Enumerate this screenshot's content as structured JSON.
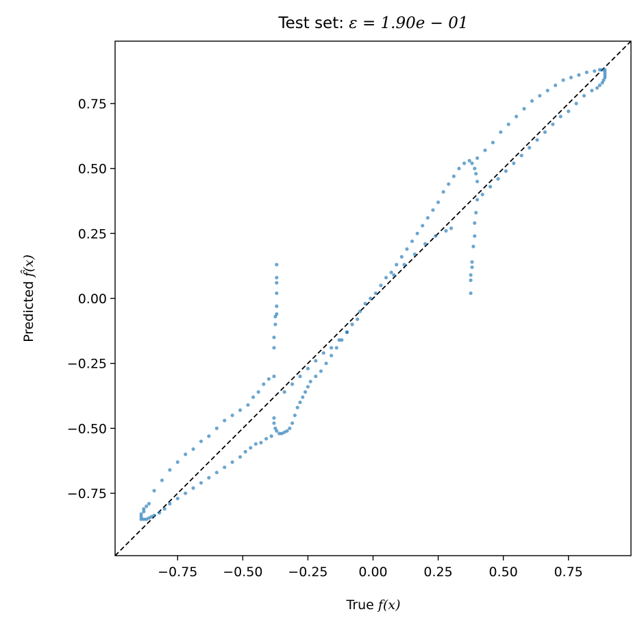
{
  "chart_data": {
    "type": "scatter",
    "title_prefix": "Test set: ",
    "title_math": "ε = 1.90e − 01",
    "xlabel_prefix": "True ",
    "xlabel_math": "f(x)",
    "ylabel_prefix": "Predicted ",
    "ylabel_math": "f̂(x)",
    "xlim": [
      -0.99,
      0.99
    ],
    "ylim": [
      -0.99,
      0.99
    ],
    "xticks": [
      -0.75,
      -0.5,
      -0.25,
      0.0,
      0.25,
      0.5,
      0.75
    ],
    "xtick_labels": [
      "−0.75",
      "−0.50",
      "−0.25",
      "0.00",
      "0.25",
      "0.50",
      "0.75"
    ],
    "yticks": [
      -0.75,
      -0.5,
      -0.25,
      0.0,
      0.25,
      0.5,
      0.75
    ],
    "ytick_labels": [
      "−0.75",
      "−0.50",
      "−0.25",
      "0.00",
      "0.25",
      "0.50",
      "0.75"
    ],
    "grid": false,
    "point_color": "#1f77b4",
    "reference_line": {
      "style": "dashed",
      "color": "#000000",
      "from": [
        -0.99,
        -0.99
      ],
      "to": [
        0.99,
        0.99
      ]
    },
    "points": [
      [
        -0.89,
        -0.85
      ],
      [
        -0.89,
        -0.84
      ],
      [
        -0.89,
        -0.83
      ],
      [
        -0.88,
        -0.82
      ],
      [
        -0.88,
        -0.81
      ],
      [
        -0.87,
        -0.8
      ],
      [
        -0.86,
        -0.79
      ],
      [
        -0.88,
        -0.85
      ],
      [
        -0.87,
        -0.85
      ],
      [
        -0.86,
        -0.845
      ],
      [
        -0.85,
        -0.84
      ],
      [
        -0.84,
        -0.835
      ],
      [
        -0.82,
        -0.825
      ],
      [
        -0.8,
        -0.81
      ],
      [
        -0.78,
        -0.79
      ],
      [
        -0.75,
        -0.77
      ],
      [
        -0.72,
        -0.75
      ],
      [
        -0.69,
        -0.73
      ],
      [
        -0.66,
        -0.71
      ],
      [
        -0.63,
        -0.69
      ],
      [
        -0.6,
        -0.67
      ],
      [
        -0.57,
        -0.65
      ],
      [
        -0.54,
        -0.63
      ],
      [
        -0.51,
        -0.61
      ],
      [
        -0.49,
        -0.59
      ],
      [
        -0.47,
        -0.575
      ],
      [
        -0.45,
        -0.56
      ],
      [
        -0.43,
        -0.555
      ],
      [
        -0.41,
        -0.54
      ],
      [
        -0.39,
        -0.53
      ],
      [
        -0.84,
        -0.74
      ],
      [
        -0.81,
        -0.7
      ],
      [
        -0.78,
        -0.66
      ],
      [
        -0.75,
        -0.63
      ],
      [
        -0.72,
        -0.6
      ],
      [
        -0.69,
        -0.58
      ],
      [
        -0.66,
        -0.55
      ],
      [
        -0.63,
        -0.53
      ],
      [
        -0.6,
        -0.5
      ],
      [
        -0.57,
        -0.47
      ],
      [
        -0.54,
        -0.45
      ],
      [
        -0.51,
        -0.43
      ],
      [
        -0.48,
        -0.41
      ],
      [
        -0.46,
        -0.38
      ],
      [
        -0.44,
        -0.36
      ],
      [
        -0.42,
        -0.33
      ],
      [
        -0.4,
        -0.31
      ],
      [
        -0.38,
        -0.3
      ],
      [
        -0.38,
        -0.46
      ],
      [
        -0.38,
        -0.48
      ],
      [
        -0.375,
        -0.5
      ],
      [
        -0.37,
        -0.51
      ],
      [
        -0.36,
        -0.52
      ],
      [
        -0.35,
        -0.52
      ],
      [
        -0.34,
        -0.515
      ],
      [
        -0.33,
        -0.51
      ],
      [
        -0.32,
        -0.5
      ],
      [
        -0.31,
        -0.48
      ],
      [
        -0.3,
        -0.45
      ],
      [
        -0.29,
        -0.42
      ],
      [
        -0.28,
        -0.4
      ],
      [
        -0.27,
        -0.38
      ],
      [
        -0.26,
        -0.36
      ],
      [
        -0.25,
        -0.34
      ],
      [
        -0.24,
        -0.32
      ],
      [
        -0.22,
        -0.3
      ],
      [
        -0.2,
        -0.28
      ],
      [
        -0.18,
        -0.25
      ],
      [
        -0.16,
        -0.22
      ],
      [
        -0.14,
        -0.19
      ],
      [
        -0.12,
        -0.16
      ],
      [
        -0.1,
        -0.13
      ],
      [
        -0.08,
        -0.1
      ],
      [
        -0.06,
        -0.08
      ],
      [
        -0.34,
        -0.36
      ],
      [
        -0.31,
        -0.33
      ],
      [
        -0.28,
        -0.3
      ],
      [
        -0.25,
        -0.27
      ],
      [
        -0.22,
        -0.24
      ],
      [
        -0.19,
        -0.21
      ],
      [
        -0.16,
        -0.19
      ],
      [
        -0.13,
        -0.16
      ],
      [
        -0.1,
        -0.13
      ],
      [
        -0.38,
        -0.19
      ],
      [
        -0.38,
        -0.15
      ],
      [
        -0.375,
        -0.1
      ],
      [
        -0.375,
        -0.07
      ],
      [
        -0.37,
        -0.06
      ],
      [
        -0.37,
        -0.03
      ],
      [
        -0.37,
        0.02
      ],
      [
        -0.37,
        0.06
      ],
      [
        -0.37,
        0.08
      ],
      [
        -0.37,
        0.13
      ],
      [
        -0.05,
        -0.05
      ],
      [
        -0.03,
        -0.02
      ],
      [
        -0.01,
        0.0
      ],
      [
        0.01,
        0.02
      ],
      [
        0.03,
        0.05
      ],
      [
        0.05,
        0.08
      ],
      [
        0.07,
        0.1
      ],
      [
        0.09,
        0.13
      ],
      [
        0.11,
        0.16
      ],
      [
        0.13,
        0.19
      ],
      [
        0.15,
        0.22
      ],
      [
        0.17,
        0.25
      ],
      [
        0.19,
        0.28
      ],
      [
        0.21,
        0.31
      ],
      [
        0.23,
        0.34
      ],
      [
        0.25,
        0.37
      ],
      [
        0.27,
        0.41
      ],
      [
        0.29,
        0.44
      ],
      [
        0.31,
        0.47
      ],
      [
        0.33,
        0.5
      ],
      [
        0.35,
        0.52
      ],
      [
        0.37,
        0.53
      ],
      [
        0.38,
        0.52
      ],
      [
        0.39,
        0.5
      ],
      [
        0.395,
        0.48
      ],
      [
        0.4,
        0.45
      ],
      [
        0.08,
        0.09
      ],
      [
        0.12,
        0.13
      ],
      [
        0.16,
        0.17
      ],
      [
        0.2,
        0.21
      ],
      [
        0.24,
        0.24
      ],
      [
        0.28,
        0.26
      ],
      [
        0.3,
        0.27
      ],
      [
        0.375,
        0.02
      ],
      [
        0.375,
        0.07
      ],
      [
        0.375,
        0.09
      ],
      [
        0.38,
        0.12
      ],
      [
        0.38,
        0.14
      ],
      [
        0.385,
        0.2
      ],
      [
        0.39,
        0.24
      ],
      [
        0.39,
        0.29
      ],
      [
        0.395,
        0.33
      ],
      [
        0.4,
        0.38
      ],
      [
        0.42,
        0.4
      ],
      [
        0.45,
        0.43
      ],
      [
        0.48,
        0.46
      ],
      [
        0.51,
        0.49
      ],
      [
        0.54,
        0.52
      ],
      [
        0.57,
        0.55
      ],
      [
        0.6,
        0.58
      ],
      [
        0.63,
        0.61
      ],
      [
        0.66,
        0.64
      ],
      [
        0.69,
        0.67
      ],
      [
        0.72,
        0.7
      ],
      [
        0.75,
        0.72
      ],
      [
        0.78,
        0.75
      ],
      [
        0.81,
        0.78
      ],
      [
        0.84,
        0.8
      ],
      [
        0.86,
        0.81
      ],
      [
        0.87,
        0.82
      ],
      [
        0.88,
        0.83
      ],
      [
        0.885,
        0.84
      ],
      [
        0.89,
        0.85
      ],
      [
        0.89,
        0.86
      ],
      [
        0.89,
        0.87
      ],
      [
        0.4,
        0.54
      ],
      [
        0.43,
        0.57
      ],
      [
        0.46,
        0.6
      ],
      [
        0.49,
        0.64
      ],
      [
        0.52,
        0.67
      ],
      [
        0.55,
        0.7
      ],
      [
        0.58,
        0.73
      ],
      [
        0.61,
        0.76
      ],
      [
        0.64,
        0.78
      ],
      [
        0.67,
        0.8
      ],
      [
        0.7,
        0.82
      ],
      [
        0.73,
        0.84
      ],
      [
        0.76,
        0.85
      ],
      [
        0.79,
        0.86
      ],
      [
        0.82,
        0.87
      ],
      [
        0.85,
        0.875
      ],
      [
        0.87,
        0.88
      ],
      [
        0.88,
        0.88
      ],
      [
        0.89,
        0.88
      ]
    ]
  }
}
